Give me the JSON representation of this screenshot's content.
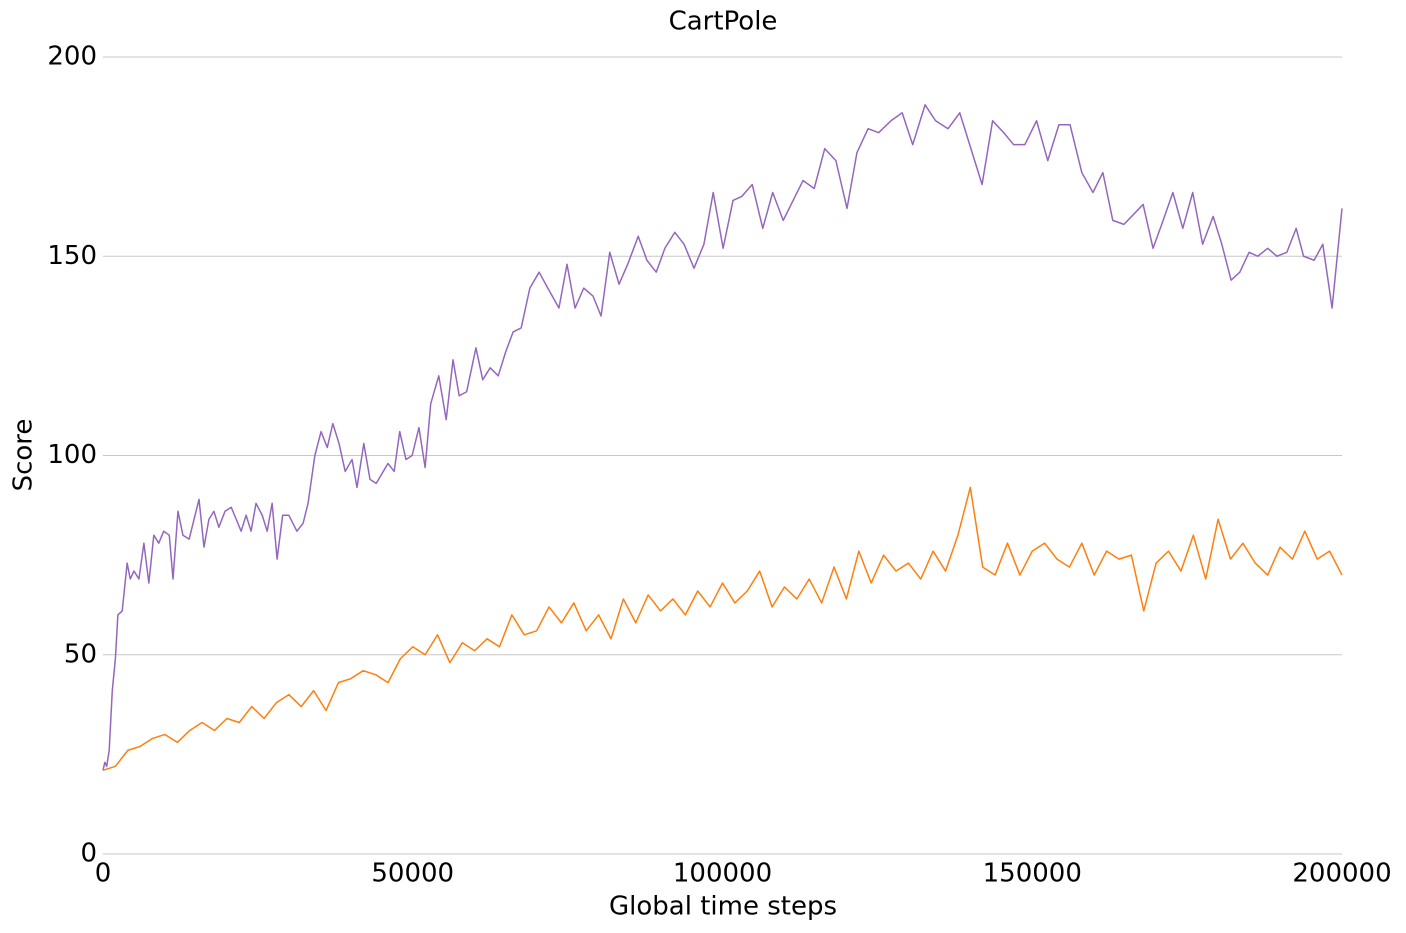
{
  "chart_data": {
    "type": "line",
    "title": "CartPole",
    "xlabel": "Global time steps",
    "ylabel": "Score",
    "xlim": [
      0,
      200000
    ],
    "ylim": [
      0,
      200
    ],
    "xticks": [
      0,
      50000,
      100000,
      150000,
      200000
    ],
    "yticks": [
      0,
      50,
      100,
      150,
      200
    ],
    "grid": true,
    "series": [
      {
        "color": "#9467bd",
        "x": [
          0,
          300,
          600,
          1000,
          1500,
          2000,
          2400,
          3100,
          3900,
          4400,
          5000,
          5800,
          6600,
          7400,
          8200,
          9000,
          9800,
          10700,
          11300,
          12100,
          12900,
          13900,
          14700,
          15500,
          16300,
          17100,
          17900,
          18700,
          19700,
          20700,
          21500,
          22300,
          23100,
          23900,
          24700,
          25700,
          26500,
          27300,
          28100,
          29000,
          30000,
          31300,
          32300,
          33100,
          34200,
          35200,
          36200,
          37100,
          38100,
          39100,
          40200,
          41000,
          42100,
          43100,
          44100,
          46000,
          47000,
          47900,
          48900,
          49900,
          51000,
          52000,
          52900,
          54200,
          55400,
          56500,
          57500,
          58700,
          60200,
          61300,
          62500,
          63800,
          65000,
          66200,
          67500,
          68900,
          70400,
          71800,
          73600,
          74900,
          76200,
          77600,
          79100,
          80400,
          81800,
          83300,
          84700,
          86400,
          87800,
          89300,
          90700,
          92300,
          93800,
          95400,
          97000,
          98500,
          100100,
          101700,
          103100,
          104800,
          106500,
          108100,
          109800,
          111400,
          113000,
          114800,
          116500,
          118300,
          120100,
          121700,
          123500,
          125200,
          127200,
          129000,
          130700,
          132700,
          134400,
          136400,
          138300,
          140100,
          141900,
          143600,
          145400,
          147000,
          148800,
          150700,
          152500,
          154300,
          156100,
          158000,
          159800,
          161400,
          163000,
          164800,
          167900,
          169500,
          170900,
          172700,
          174300,
          175900,
          177500,
          179200,
          180600,
          182100,
          183500,
          185000,
          186400,
          188000,
          189500,
          191100,
          192600,
          193800,
          195500,
          196900,
          198400,
          200000
        ],
        "values": [
          21,
          23,
          22,
          26,
          41,
          49,
          60,
          61,
          73,
          69,
          71,
          69,
          78,
          68,
          80,
          78,
          81,
          80,
          69,
          86,
          80,
          79,
          84,
          89,
          77,
          84,
          86,
          82,
          86,
          87,
          84,
          81,
          85,
          81,
          88,
          85,
          81,
          88,
          74,
          85,
          85,
          81,
          83,
          88,
          100,
          106,
          102,
          108,
          103,
          96,
          99,
          92,
          103,
          94,
          93,
          98,
          96,
          106,
          99,
          100,
          107,
          97,
          113,
          120,
          109,
          124,
          115,
          116,
          127,
          119,
          122,
          120,
          126,
          131,
          132,
          142,
          146,
          142,
          137,
          148,
          137,
          142,
          140,
          135,
          151,
          143,
          148,
          155,
          149,
          146,
          152,
          156,
          153,
          147,
          153,
          166,
          152,
          164,
          165,
          168,
          157,
          166,
          159,
          164,
          169,
          167,
          177,
          174,
          162,
          176,
          182,
          181,
          184,
          186,
          178,
          188,
          184,
          182,
          186,
          177,
          168,
          184,
          181,
          178,
          178,
          184,
          174,
          183,
          183,
          171,
          166,
          171,
          159,
          158,
          163,
          152,
          158,
          166,
          157,
          166,
          153,
          160,
          153,
          144,
          146,
          151,
          150,
          152,
          150,
          151,
          157,
          150,
          149,
          153,
          137,
          162
        ]
      },
      {
        "color": "#ff7f0e",
        "x": [
          0,
          2000,
          4000,
          6000,
          8000,
          10000,
          12000,
          14000,
          16000,
          18000,
          20000,
          22000,
          24000,
          26000,
          28000,
          30000,
          32000,
          34000,
          36000,
          38000,
          40000,
          42000,
          44000,
          46000,
          48000,
          50000,
          52000,
          54000,
          56000,
          58000,
          60000,
          62000,
          64000,
          66000,
          68000,
          70000,
          72000,
          74000,
          76000,
          78000,
          80000,
          82000,
          84000,
          86000,
          88000,
          90000,
          92000,
          94000,
          96000,
          98000,
          100000,
          102000,
          104000,
          106000,
          108000,
          110000,
          112000,
          114000,
          116000,
          118000,
          120000,
          122000,
          124000,
          126000,
          128000,
          130000,
          132000,
          134000,
          136000,
          138000,
          140000,
          142000,
          144000,
          146000,
          148000,
          150000,
          152000,
          154000,
          156000,
          158000,
          160000,
          162000,
          164000,
          166000,
          168000,
          170000,
          172000,
          174000,
          176000,
          178000,
          180000,
          182000,
          184000,
          186000,
          188000,
          190000,
          192000,
          194000,
          196000,
          198000,
          200000
        ],
        "values": [
          21,
          22,
          26,
          27,
          29,
          30,
          28,
          31,
          33,
          31,
          34,
          33,
          37,
          34,
          38,
          40,
          37,
          41,
          36,
          43,
          44,
          46,
          45,
          43,
          49,
          52,
          50,
          55,
          48,
          53,
          51,
          54,
          52,
          60,
          55,
          56,
          62,
          58,
          63,
          56,
          60,
          54,
          64,
          58,
          65,
          61,
          64,
          60,
          66,
          62,
          68,
          63,
          66,
          71,
          62,
          67,
          64,
          69,
          63,
          72,
          64,
          76,
          68,
          75,
          71,
          73,
          69,
          76,
          71,
          80,
          92,
          72,
          70,
          78,
          70,
          76,
          78,
          74,
          72,
          78,
          70,
          76,
          74,
          75,
          61,
          73,
          76,
          71,
          80,
          69,
          84,
          74,
          78,
          73,
          70,
          77,
          74,
          81,
          74,
          76,
          70
        ]
      }
    ]
  }
}
